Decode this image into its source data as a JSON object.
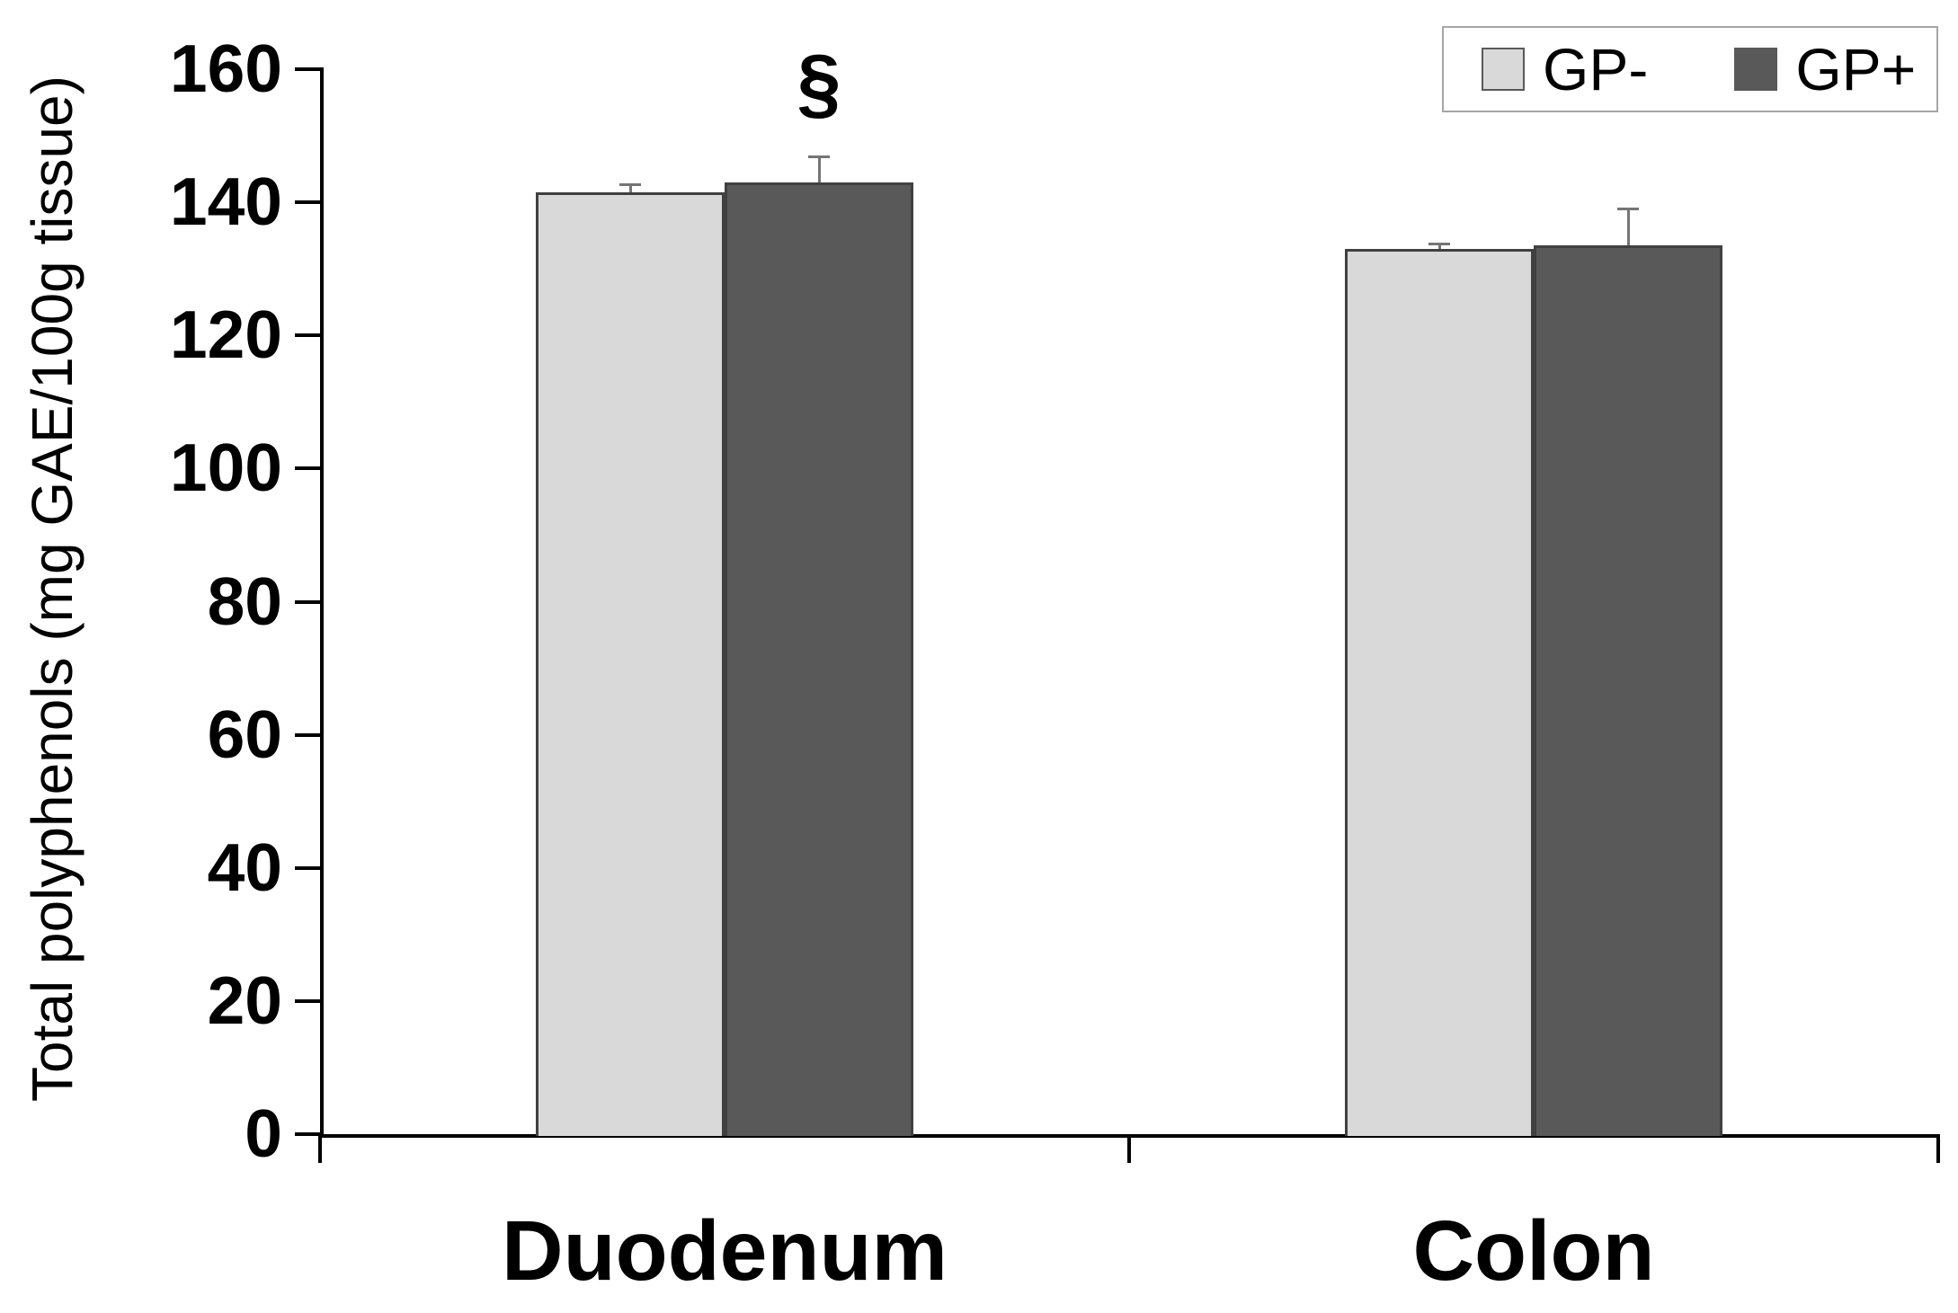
{
  "chart_data": {
    "type": "bar",
    "categories": [
      "Duodenum",
      "Colon"
    ],
    "series": [
      {
        "name": "GP-",
        "values": [
          141.5,
          133.0
        ],
        "errors": [
          1.4,
          1.0
        ],
        "color": "#d9d9d9",
        "border_color": "#404040"
      },
      {
        "name": "GP+",
        "values": [
          143.0,
          133.5
        ],
        "errors": [
          4.0,
          5.7
        ],
        "color": "#595959",
        "border_color": "#404040"
      }
    ],
    "title": "",
    "xlabel": "",
    "ylabel": "Total polyphenols (mg GAE/100g tissue)",
    "ylim": [
      0,
      160
    ],
    "ytick_step": 20,
    "ytick_labels": [
      "0",
      "20",
      "40",
      "60",
      "80",
      "100",
      "120",
      "140",
      "160"
    ],
    "grid": false,
    "legend": {
      "position": "top-right",
      "entries": [
        "GP-",
        "GP+"
      ]
    },
    "annotations": [
      {
        "text": "§",
        "category_index": 0,
        "series_index": 1,
        "meaning": "significance-marker"
      }
    ],
    "error_bar_color": "#757575",
    "axis_color": "#000000"
  }
}
